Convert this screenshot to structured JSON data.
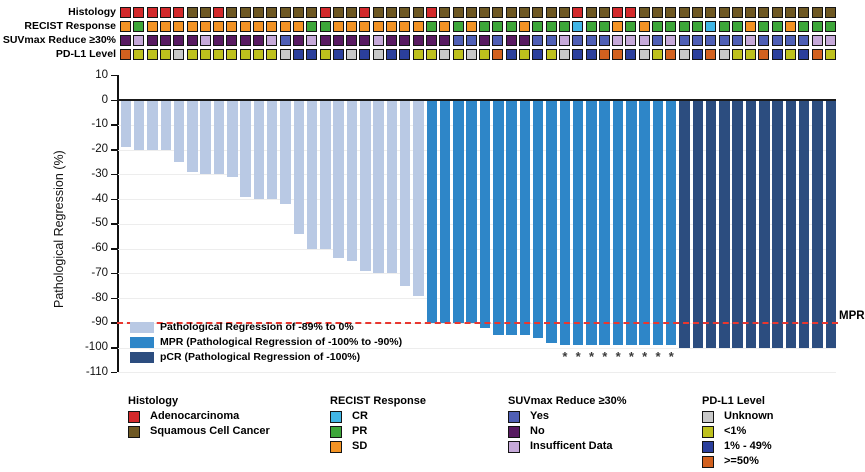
{
  "figure_title": "",
  "annotation_tracks": [
    {
      "label": "Histology",
      "key": {
        "A": {
          "label": "Adenocarcinoma",
          "color": "#d3292b"
        },
        "S": {
          "label": "Squamous Cell Cancer",
          "color": "#6e5823"
        }
      },
      "values": [
        "A",
        "A",
        "A",
        "A",
        "A",
        "S",
        "S",
        "A",
        "S",
        "S",
        "S",
        "S",
        "S",
        "S",
        "S",
        "A",
        "S",
        "S",
        "A",
        "S",
        "S",
        "S",
        "S",
        "A",
        "S",
        "S",
        "S",
        "S",
        "S",
        "S",
        "S",
        "S",
        "S",
        "S",
        "A",
        "S",
        "S",
        "A",
        "A",
        "S",
        "S",
        "S",
        "S",
        "S",
        "S",
        "S",
        "S",
        "S",
        "S",
        "S",
        "S",
        "S",
        "S",
        "S"
      ]
    },
    {
      "label": "RECIST Response",
      "key": {
        "C": {
          "label": "CR",
          "color": "#41b6e6"
        },
        "G": {
          "label": "PR",
          "color": "#3da639"
        },
        "O": {
          "label": "SD",
          "color": "#f39324"
        }
      },
      "values": [
        "O",
        "G",
        "O",
        "O",
        "O",
        "O",
        "O",
        "O",
        "O",
        "O",
        "O",
        "O",
        "O",
        "O",
        "G",
        "G",
        "O",
        "O",
        "O",
        "O",
        "O",
        "O",
        "O",
        "G",
        "O",
        "G",
        "O",
        "G",
        "G",
        "G",
        "O",
        "G",
        "G",
        "G",
        "C",
        "G",
        "G",
        "O",
        "G",
        "O",
        "G",
        "G",
        "G",
        "G",
        "C",
        "G",
        "G",
        "O",
        "G",
        "G",
        "O",
        "G",
        "G",
        "G"
      ]
    },
    {
      "label": "SUVmax Reduce ≥30%",
      "key": {
        "Y": {
          "label": "Yes",
          "color": "#4f5fb5"
        },
        "N": {
          "label": "No",
          "color": "#581a61"
        },
        "I": {
          "label": "Insufficent Data",
          "color": "#c6a9d9"
        }
      },
      "values": [
        "N",
        "I",
        "N",
        "N",
        "N",
        "N",
        "I",
        "N",
        "N",
        "N",
        "N",
        "I",
        "Y",
        "N",
        "I",
        "N",
        "N",
        "N",
        "N",
        "I",
        "N",
        "N",
        "N",
        "N",
        "N",
        "Y",
        "Y",
        "N",
        "Y",
        "N",
        "N",
        "Y",
        "Y",
        "I",
        "Y",
        "Y",
        "Y",
        "I",
        "I",
        "I",
        "Y",
        "I",
        "Y",
        "Y",
        "Y",
        "Y",
        "Y",
        "I",
        "Y",
        "Y",
        "Y",
        "Y",
        "I",
        "I"
      ]
    },
    {
      "label": "PD-L1 Level",
      "key": {
        "U": {
          "label": "Unknown",
          "color": "#c9c9c9"
        },
        "L": {
          "label": "<1%",
          "color": "#bec11d"
        },
        "M": {
          "label": "1% - 49%",
          "color": "#2b3f9c"
        },
        "H": {
          "label": ">=50%",
          "color": "#d2611f"
        }
      },
      "values": [
        "H",
        "L",
        "L",
        "L",
        "U",
        "L",
        "L",
        "L",
        "L",
        "L",
        "L",
        "L",
        "U",
        "M",
        "M",
        "L",
        "M",
        "U",
        "M",
        "U",
        "M",
        "M",
        "L",
        "L",
        "U",
        "L",
        "U",
        "L",
        "H",
        "M",
        "L",
        "M",
        "L",
        "U",
        "M",
        "M",
        "H",
        "H",
        "M",
        "U",
        "L",
        "H",
        "U",
        "M",
        "H",
        "U",
        "L",
        "L",
        "H",
        "M",
        "L",
        "M",
        "H",
        "L"
      ]
    }
  ],
  "chart_data": {
    "type": "bar",
    "title": "",
    "xlabel": "",
    "ylabel": "Pathological Regression (%)",
    "ylim": [
      -110,
      10
    ],
    "yticks": [
      10,
      0,
      -10,
      -20,
      -30,
      -40,
      -50,
      -60,
      -70,
      -80,
      -90,
      -100,
      -110
    ],
    "grid": true,
    "n_patients": 54,
    "values": [
      -19,
      -20,
      -20,
      -20,
      -25,
      -29,
      -30,
      -30,
      -31,
      -39,
      -40,
      -40,
      -42,
      -54,
      -60,
      -60,
      -64,
      -65,
      -69,
      -70,
      -70,
      -75,
      -79,
      -90,
      -90,
      -90,
      -90,
      -92,
      -95,
      -95,
      -95,
      -96,
      -98,
      -99,
      -99,
      -99,
      -99,
      -99,
      -99,
      -99,
      -99,
      -99,
      -100,
      -100,
      -100,
      -100,
      -100,
      -100,
      -100,
      -100,
      -100,
      -100,
      -100,
      -100
    ],
    "groups": [
      "PRrange",
      "PRrange",
      "PRrange",
      "PRrange",
      "PRrange",
      "PRrange",
      "PRrange",
      "PRrange",
      "PRrange",
      "PRrange",
      "PRrange",
      "PRrange",
      "PRrange",
      "PRrange",
      "PRrange",
      "PRrange",
      "PRrange",
      "PRrange",
      "PRrange",
      "PRrange",
      "PRrange",
      "PRrange",
      "PRrange",
      "MPR",
      "MPR",
      "MPR",
      "MPR",
      "MPR",
      "MPR",
      "MPR",
      "MPR",
      "MPR",
      "MPR",
      "MPR",
      "MPR",
      "MPR",
      "MPR",
      "MPR",
      "MPR",
      "MPR",
      "MPR",
      "MPR",
      "pCR",
      "pCR",
      "pCR",
      "pCR",
      "pCR",
      "pCR",
      "pCR",
      "pCR",
      "pCR",
      "pCR",
      "pCR",
      "pCR"
    ],
    "group_colors": {
      "PRrange": "#b9c9e4",
      "MPR": "#2e86c8",
      "pCR": "#2c4d7f"
    },
    "asterisk_bar_indices": [
      34,
      35,
      36,
      37,
      38,
      39,
      40,
      41,
      42
    ],
    "asterisk_symbol": "*",
    "reference_line": {
      "y": -90,
      "label": "MPR",
      "style": "dashed",
      "color": "#e8372f"
    },
    "legend_position": "lower-left",
    "legend": [
      {
        "label": "Pathological Regression of -89% to 0%",
        "color": "#b9c9e4"
      },
      {
        "label": "MPR (Pathological Regression of -100% to -90%)",
        "color": "#2e86c8"
      },
      {
        "label": "pCR (Pathological Regression of -100%)",
        "color": "#2c4d7f"
      }
    ]
  },
  "bottom_legends": [
    {
      "title": "Histology",
      "items": [
        {
          "label": "Adenocarcinoma",
          "color": "#d3292b"
        },
        {
          "label": "Squamous Cell Cancer",
          "color": "#6e5823"
        }
      ]
    },
    {
      "title": "RECIST Response",
      "items": [
        {
          "label": "CR",
          "color": "#41b6e6"
        },
        {
          "label": "PR",
          "color": "#3da639"
        },
        {
          "label": "SD",
          "color": "#f39324"
        }
      ]
    },
    {
      "title": "SUVmax Reduce ≥30%",
      "items": [
        {
          "label": "Yes",
          "color": "#4f5fb5"
        },
        {
          "label": "No",
          "color": "#581a61"
        },
        {
          "label": "Insufficent Data",
          "color": "#c6a9d9"
        }
      ]
    },
    {
      "title": "PD-L1 Level",
      "items": [
        {
          "label": "Unknown",
          "color": "#c9c9c9"
        },
        {
          "label": "<1%",
          "color": "#bec11d"
        },
        {
          "label": "1% - 49%",
          "color": "#2b3f9c"
        },
        {
          "label": ">=50%",
          "color": "#d2611f"
        }
      ]
    }
  ]
}
